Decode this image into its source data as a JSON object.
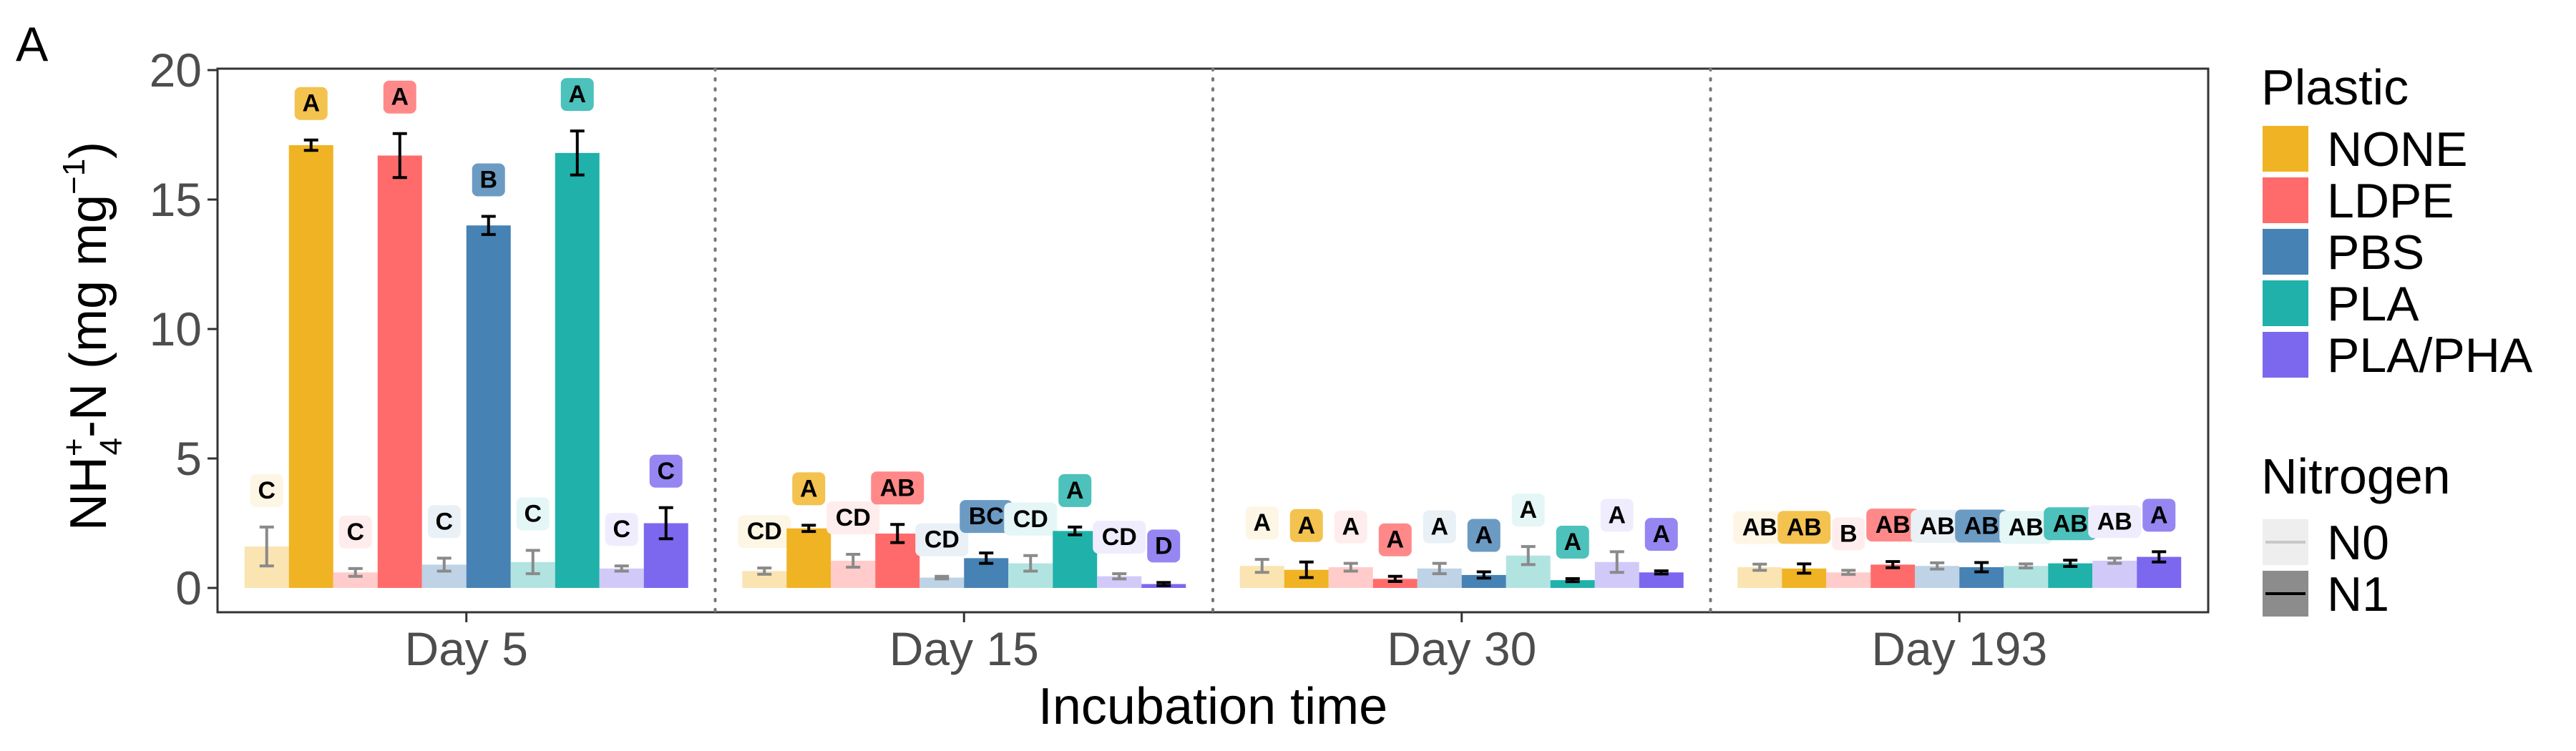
{
  "chart_data": {
    "type": "bar",
    "panel_label": "A",
    "title": "",
    "xlabel": "Incubation time",
    "ylabel": {
      "main": "NH",
      "sup": "+",
      "sub": "4",
      "rest": "-N (mg mg",
      "exp": "−1",
      "close": ")"
    },
    "ylim": [
      0,
      20
    ],
    "yticks": [
      "0",
      "5",
      "10",
      "15",
      "20"
    ],
    "grid": false,
    "categories": [
      "Day 5",
      "Day 15",
      "Day 30",
      "Day 193"
    ],
    "legend_placement": "right",
    "legend_plastic": {
      "title": "Plastic",
      "items": [
        {
          "name": "NONE",
          "color": "#F0B323"
        },
        {
          "name": "LDPE",
          "color": "#FF6B6B"
        },
        {
          "name": "PBS",
          "color": "#4682B4"
        },
        {
          "name": "PLA",
          "color": "#20B2AA"
        },
        {
          "name": "PLA/PHA",
          "color": "#7B68EE"
        }
      ]
    },
    "legend_nitrogen": {
      "title": "Nitrogen",
      "items": [
        {
          "name": "N0",
          "style": "light"
        },
        {
          "name": "N1",
          "style": "dark"
        }
      ]
    },
    "series": [
      {
        "name": "NONE N0",
        "plastic": "NONE",
        "nitrogen": "N0",
        "values": [
          1.6,
          0.65,
          0.85,
          0.8
        ],
        "errors": [
          0.75,
          0.12,
          0.25,
          0.12
        ],
        "letters": [
          "C",
          "CD",
          "A",
          "AB"
        ]
      },
      {
        "name": "NONE N1",
        "plastic": "NONE",
        "nitrogen": "N1",
        "values": [
          17.1,
          2.3,
          0.7,
          0.75
        ],
        "errors": [
          0.2,
          0.12,
          0.3,
          0.18
        ],
        "letters": [
          "A",
          "A",
          "A",
          "AB"
        ]
      },
      {
        "name": "LDPE N0",
        "plastic": "LDPE",
        "nitrogen": "N0",
        "values": [
          0.6,
          1.05,
          0.8,
          0.6
        ],
        "errors": [
          0.15,
          0.25,
          0.15,
          0.08
        ],
        "letters": [
          "C",
          "CD",
          "A",
          "B"
        ]
      },
      {
        "name": "LDPE N1",
        "plastic": "LDPE",
        "nitrogen": "N1",
        "values": [
          16.7,
          2.1,
          0.35,
          0.9
        ],
        "errors": [
          0.85,
          0.35,
          0.1,
          0.12
        ],
        "letters": [
          "A",
          "AB",
          "A",
          "AB"
        ]
      },
      {
        "name": "PBS N0",
        "plastic": "PBS",
        "nitrogen": "N0",
        "values": [
          0.9,
          0.4,
          0.75,
          0.85
        ],
        "errors": [
          0.25,
          0.05,
          0.2,
          0.12
        ],
        "letters": [
          "C",
          "CD",
          "A",
          "AB"
        ]
      },
      {
        "name": "PBS N1",
        "plastic": "PBS",
        "nitrogen": "N1",
        "values": [
          14.0,
          1.15,
          0.5,
          0.8
        ],
        "errors": [
          0.35,
          0.2,
          0.12,
          0.18
        ],
        "letters": [
          "B",
          "BC",
          "A",
          "AB"
        ]
      },
      {
        "name": "PLA N0",
        "plastic": "PLA",
        "nitrogen": "N0",
        "values": [
          1.0,
          0.95,
          1.25,
          0.85
        ],
        "errors": [
          0.45,
          0.3,
          0.35,
          0.08
        ],
        "letters": [
          "C",
          "CD",
          "A",
          "AB"
        ]
      },
      {
        "name": "PLA N1",
        "plastic": "PLA",
        "nitrogen": "N1",
        "values": [
          16.8,
          2.2,
          0.3,
          0.95
        ],
        "errors": [
          0.85,
          0.15,
          0.06,
          0.12
        ],
        "letters": [
          "A",
          "A",
          "A",
          "AB"
        ]
      },
      {
        "name": "PLA/PHA N0",
        "plastic": "PLA/PHA",
        "nitrogen": "N0",
        "values": [
          0.75,
          0.45,
          1.0,
          1.05
        ],
        "errors": [
          0.1,
          0.1,
          0.4,
          0.1
        ],
        "letters": [
          "C",
          "CD",
          "A",
          "AB"
        ]
      },
      {
        "name": "PLA/PHA N1",
        "plastic": "PLA/PHA",
        "nitrogen": "N1",
        "values": [
          2.5,
          0.15,
          0.6,
          1.2
        ],
        "errors": [
          0.6,
          0.06,
          0.06,
          0.2
        ],
        "letters": [
          "C",
          "D",
          "A",
          "A"
        ]
      }
    ]
  }
}
